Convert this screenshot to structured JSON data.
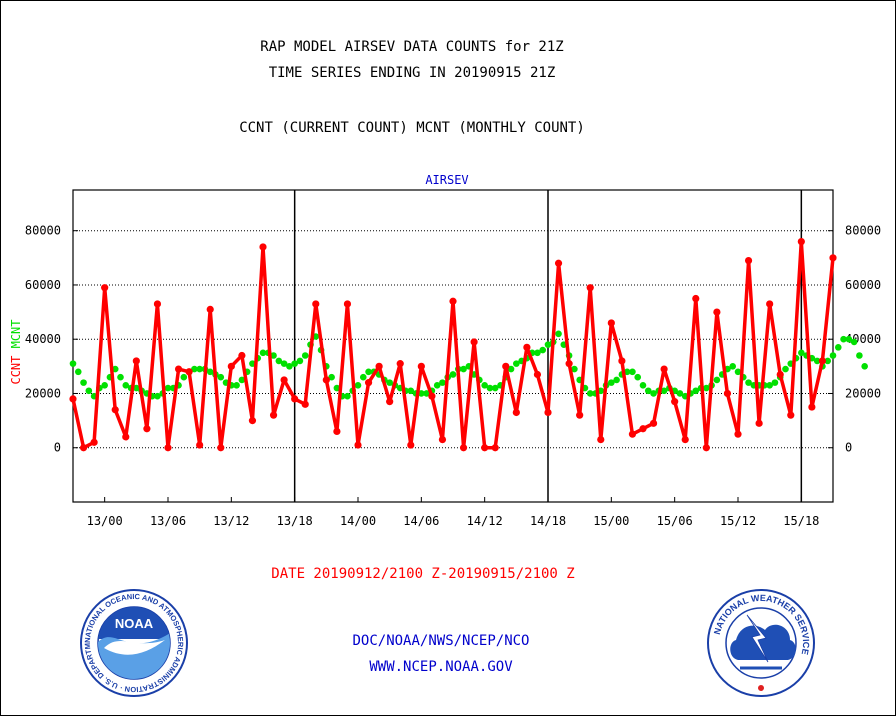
{
  "header": {
    "title_line1": "RAP MODEL AIRSEV DATA COUNTS for 21Z",
    "title_line2": "TIME SERIES ENDING IN 20190915 21Z",
    "title_line3": "CCNT (CURRENT COUNT) MCNT (MONTHLY COUNT)"
  },
  "footer": {
    "date_range": "DATE 20190912/2100 Z-20190915/2100 Z",
    "org_line": "DOC/NOAA/NWS/NCEP/NCO",
    "url_line": "WWW.NCEP.NOAA.GOV"
  },
  "logos": {
    "left_text": "NOAA",
    "left_ring_text": "NATIONAL OCEANIC AND ATMOSPHERIC ADMINISTRATION · U.S. DEPARTMENT OF COMMERCE",
    "right_ring_text": "NATIONAL WEATHER SERVICE"
  },
  "colors": {
    "ccnt": "#ff0000",
    "mcnt": "#00e000",
    "title": "#000000",
    "plot_label": "#0000cc",
    "date_text": "#ff0000",
    "footer_text": "#0000cc"
  },
  "chart_data": {
    "type": "line",
    "title": "AIRSEV",
    "ylabel_parts": [
      {
        "text": "CCNT",
        "color": "#ff0000"
      },
      {
        "text": "MCNT",
        "color": "#00e000"
      }
    ],
    "ylim": [
      -20000,
      95000
    ],
    "yticks": [
      0,
      20000,
      40000,
      60000,
      80000
    ],
    "ytick_labels": [
      "0",
      "20000",
      "40000",
      "60000",
      "80000"
    ],
    "xlim": [
      0,
      72
    ],
    "xticks": [
      3,
      9,
      15,
      21,
      27,
      33,
      39,
      45,
      51,
      57,
      63,
      69
    ],
    "xtick_labels": [
      "13/00",
      "13/06",
      "13/12",
      "13/18",
      "14/00",
      "14/06",
      "14/12",
      "14/18",
      "15/00",
      "15/06",
      "15/12",
      "15/18"
    ],
    "day_dividers": [
      21,
      45,
      69
    ],
    "grid": true,
    "series": [
      {
        "name": "CCNT",
        "color": "#ff0000",
        "step": 1,
        "values": [
          18000,
          0,
          2000,
          59000,
          14000,
          4000,
          32000,
          7000,
          53000,
          0,
          29000,
          28000,
          1000,
          51000,
          0,
          30000,
          34000,
          10000,
          74000,
          12000,
          25000,
          18000,
          16000,
          53000,
          25000,
          6000,
          53000,
          1000,
          24000,
          30000,
          17000,
          31000,
          1000,
          30000,
          19000,
          3000,
          54000,
          0,
          39000,
          0,
          0,
          30000,
          13000,
          37000,
          27000,
          13000,
          68000,
          31000,
          12000,
          59000,
          3000,
          46000,
          32000,
          5000,
          7000,
          9000,
          29000,
          17000,
          3000,
          55000,
          0,
          50000,
          20000,
          5000,
          69000,
          9000,
          53000,
          27000,
          12000,
          76000,
          15000,
          32000,
          70000
        ]
      },
      {
        "name": "MCNT",
        "color": "#00e000",
        "step": 0.5,
        "values": [
          31000,
          28000,
          24000,
          21000,
          19000,
          22000,
          23000,
          26000,
          29000,
          26000,
          23000,
          22000,
          22000,
          21000,
          20000,
          19000,
          19000,
          20000,
          22000,
          22000,
          23000,
          26000,
          28000,
          29000,
          29000,
          29000,
          28000,
          27000,
          26000,
          24000,
          23000,
          23000,
          25000,
          28000,
          31000,
          33000,
          35000,
          35000,
          34000,
          32000,
          31000,
          30000,
          31000,
          32000,
          34000,
          38000,
          41000,
          36000,
          30000,
          26000,
          22000,
          19000,
          19000,
          21000,
          23000,
          26000,
          28000,
          28000,
          27000,
          25000,
          24000,
          23000,
          22000,
          21000,
          21000,
          20000,
          20000,
          20000,
          21000,
          23000,
          24000,
          26000,
          27000,
          29000,
          29000,
          30000,
          27000,
          25000,
          23000,
          22000,
          22000,
          23000,
          26000,
          29000,
          31000,
          32000,
          33000,
          35000,
          35000,
          36000,
          38000,
          39000,
          42000,
          38000,
          34000,
          29000,
          25000,
          22000,
          20000,
          20000,
          21000,
          23000,
          24000,
          25000,
          27000,
          28000,
          28000,
          26000,
          23000,
          21000,
          20000,
          21000,
          21000,
          22000,
          21000,
          20000,
          19000,
          20000,
          21000,
          22000,
          22000,
          23000,
          25000,
          27000,
          29000,
          30000,
          28000,
          26000,
          24000,
          23000,
          23000,
          23000,
          23000,
          24000,
          26000,
          29000,
          31000,
          33000,
          35000,
          34000,
          33000,
          32000,
          30000,
          32000,
          34000,
          37000,
          40000,
          40000,
          39000,
          34000,
          30000
        ]
      }
    ]
  }
}
